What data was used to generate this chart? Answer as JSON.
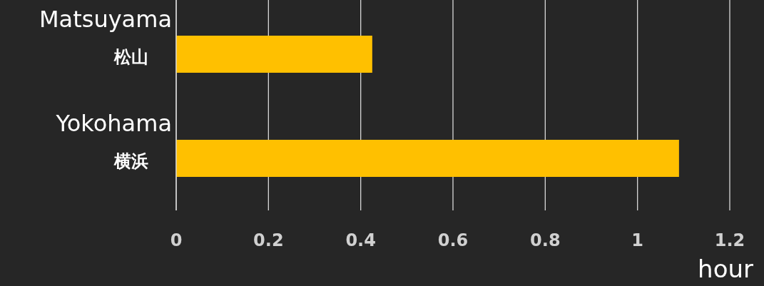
{
  "chart_data": {
    "type": "bar",
    "orientation": "horizontal",
    "xlabel": "hour",
    "categories": [
      "Matsuyama\n松山",
      "Yokohama\n横浜"
    ],
    "values": [
      0.425,
      1.09
    ],
    "color": "#ffc000",
    "xlim": [
      0,
      1.2
    ],
    "xticks": [
      0,
      0.2,
      0.4,
      0.6,
      0.8,
      1,
      1.2
    ],
    "grid": "x"
  }
}
